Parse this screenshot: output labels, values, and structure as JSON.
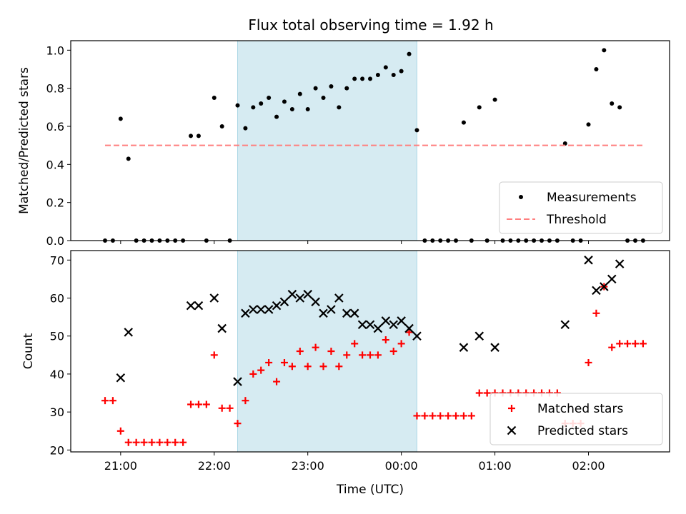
{
  "figure": {
    "title": "Flux total observing time = 1.92 h",
    "colors": {
      "shade": "#add8e6",
      "measure": "#000000",
      "threshold": "#ff7f7f",
      "matched": "#ff0000",
      "predicted": "#000000"
    }
  },
  "chart_data": [
    {
      "type": "scatter",
      "panel": "top",
      "title": "Flux total observing time = 1.92 h",
      "xlabel": "",
      "ylabel": "Matched/Predicted stars",
      "xlim": [
        "20:28",
        "02:52"
      ],
      "ylim": [
        0.0,
        1.05
      ],
      "yticks": [
        0.0,
        0.2,
        0.4,
        0.6,
        0.8,
        1.0
      ],
      "ytick_labels": [
        "0.0",
        "0.2",
        "0.4",
        "0.6",
        "0.8",
        "1.0"
      ],
      "shaded_span": [
        "22:15",
        "00:10"
      ],
      "legend_position": "lower right",
      "series": [
        {
          "name": "Measurements",
          "marker": "dot",
          "x": [
            "20:50",
            "20:55",
            "21:00",
            "21:05",
            "21:10",
            "21:15",
            "21:20",
            "21:25",
            "21:30",
            "21:35",
            "21:40",
            "21:45",
            "21:50",
            "21:55",
            "22:00",
            "22:05",
            "22:10",
            "22:15",
            "22:20",
            "22:25",
            "22:30",
            "22:35",
            "22:40",
            "22:45",
            "22:50",
            "22:55",
            "23:00",
            "23:05",
            "23:10",
            "23:15",
            "23:20",
            "23:25",
            "23:30",
            "23:35",
            "23:40",
            "23:45",
            "23:50",
            "23:55",
            "00:00",
            "00:05",
            "00:10",
            "00:15",
            "00:20",
            "00:25",
            "00:30",
            "00:35",
            "00:40",
            "00:45",
            "00:50",
            "00:55",
            "01:00",
            "01:05",
            "01:10",
            "01:15",
            "01:20",
            "01:25",
            "01:30",
            "01:35",
            "01:40",
            "01:45",
            "01:50",
            "01:55",
            "02:00",
            "02:05",
            "02:10",
            "02:15",
            "02:20",
            "02:25",
            "02:30",
            "02:35"
          ],
          "y": [
            0.0,
            0.0,
            0.64,
            0.43,
            0.0,
            0.0,
            0.0,
            0.0,
            0.0,
            0.0,
            0.0,
            0.55,
            0.55,
            0.0,
            0.75,
            0.6,
            0.0,
            0.71,
            0.59,
            0.7,
            0.72,
            0.75,
            0.65,
            0.73,
            0.69,
            0.77,
            0.69,
            0.8,
            0.75,
            0.81,
            0.7,
            0.8,
            0.85,
            0.85,
            0.85,
            0.87,
            0.91,
            0.87,
            0.89,
            0.98,
            0.58,
            0.0,
            0.0,
            0.0,
            0.0,
            0.0,
            0.62,
            0.0,
            0.7,
            0.0,
            0.74,
            0.0,
            0.0,
            0.0,
            0.0,
            0.0,
            0.0,
            0.0,
            0.0,
            0.51,
            0.0,
            0.0,
            0.61,
            0.9,
            1.0,
            0.72,
            0.7,
            0.0,
            0.0,
            0.0
          ]
        },
        {
          "name": "Threshold",
          "marker": "dashed-line",
          "x": [
            "20:50",
            "02:35"
          ],
          "y": [
            0.5,
            0.5
          ]
        }
      ]
    },
    {
      "type": "scatter",
      "panel": "bottom",
      "xlabel": "Time (UTC)",
      "ylabel": "Count",
      "xlim": [
        "20:28",
        "02:52"
      ],
      "ylim": [
        19.5,
        72.5
      ],
      "xticks": [
        "21:00",
        "22:00",
        "23:00",
        "00:00",
        "01:00",
        "02:00"
      ],
      "yticks": [
        20,
        30,
        40,
        50,
        60,
        70
      ],
      "ytick_labels": [
        "20",
        "30",
        "40",
        "50",
        "60",
        "70"
      ],
      "shaded_span": [
        "22:15",
        "00:10"
      ],
      "legend_position": "lower right",
      "series": [
        {
          "name": "Matched stars",
          "marker": "plus",
          "x": [
            "20:50",
            "20:55",
            "21:00",
            "21:05",
            "21:10",
            "21:15",
            "21:20",
            "21:25",
            "21:30",
            "21:35",
            "21:40",
            "21:45",
            "21:50",
            "21:55",
            "22:00",
            "22:05",
            "22:10",
            "22:15",
            "22:20",
            "22:25",
            "22:30",
            "22:35",
            "22:40",
            "22:45",
            "22:50",
            "22:55",
            "23:00",
            "23:05",
            "23:10",
            "23:15",
            "23:20",
            "23:25",
            "23:30",
            "23:35",
            "23:40",
            "23:45",
            "23:50",
            "23:55",
            "00:00",
            "00:05",
            "00:10",
            "00:15",
            "00:20",
            "00:25",
            "00:30",
            "00:35",
            "00:40",
            "00:45",
            "00:50",
            "00:55",
            "01:00",
            "01:05",
            "01:10",
            "01:15",
            "01:20",
            "01:25",
            "01:30",
            "01:35",
            "01:40",
            "01:45",
            "01:50",
            "01:55",
            "02:00",
            "02:05",
            "02:10",
            "02:15",
            "02:20",
            "02:25",
            "02:30",
            "02:35"
          ],
          "y": [
            33,
            33,
            25,
            22,
            22,
            22,
            22,
            22,
            22,
            22,
            22,
            32,
            32,
            32,
            45,
            31,
            31,
            27,
            33,
            40,
            41,
            43,
            38,
            43,
            42,
            46,
            42,
            47,
            42,
            46,
            42,
            45,
            48,
            45,
            45,
            45,
            49,
            46,
            48,
            51,
            29,
            29,
            29,
            29,
            29,
            29,
            29,
            29,
            35,
            35,
            35,
            35,
            35,
            35,
            35,
            35,
            35,
            35,
            35,
            27,
            27,
            27,
            43,
            56,
            63,
            47,
            48,
            48,
            48,
            48
          ]
        },
        {
          "name": "Predicted stars",
          "marker": "x",
          "x": [
            "21:00",
            "21:05",
            "21:45",
            "21:50",
            "22:00",
            "22:05",
            "22:15",
            "22:20",
            "22:25",
            "22:30",
            "22:35",
            "22:40",
            "22:45",
            "22:50",
            "22:55",
            "23:00",
            "23:05",
            "23:10",
            "23:15",
            "23:20",
            "23:25",
            "23:30",
            "23:35",
            "23:40",
            "23:45",
            "23:50",
            "23:55",
            "00:00",
            "00:05",
            "00:10",
            "00:40",
            "00:50",
            "01:00",
            "01:45",
            "02:00",
            "02:05",
            "02:10",
            "02:15",
            "02:20"
          ],
          "y": [
            39,
            51,
            58,
            58,
            60,
            52,
            38,
            56,
            57,
            57,
            57,
            58,
            59,
            61,
            60,
            61,
            59,
            56,
            57,
            60,
            56,
            56,
            53,
            53,
            52,
            54,
            53,
            54,
            52,
            50,
            47,
            50,
            47,
            53,
            70,
            62,
            63,
            65,
            69
          ]
        }
      ]
    }
  ]
}
